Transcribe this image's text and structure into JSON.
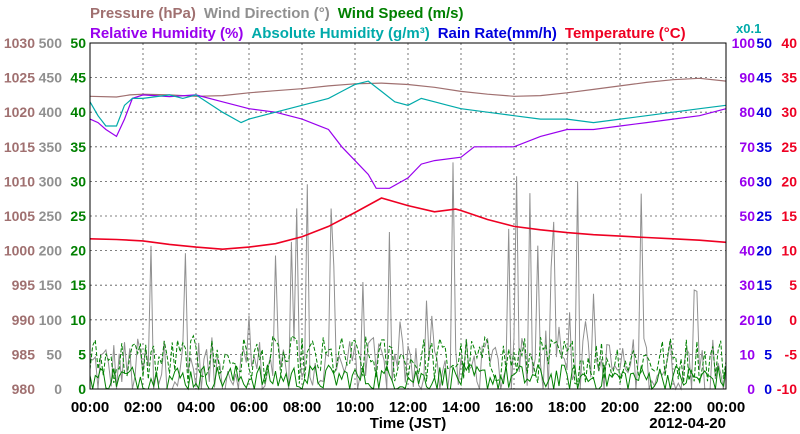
{
  "chart_data": {
    "type": "line",
    "title_row1": [
      {
        "text": "Pressure (hPa)",
        "color": "#a07070"
      },
      {
        "text": "Wind Direction (°)",
        "color": "#909090"
      },
      {
        "text": "Wind Speed (m/s)",
        "color": "#008000"
      }
    ],
    "title_row2": [
      {
        "text": "Relative Humidity (%)",
        "color": "#9900ee"
      },
      {
        "text": "Absolute Humidity (g/m³)",
        "color": "#00aaaa"
      },
      {
        "text": "Rain Rate(mm/h)",
        "color": "#0000dd"
      },
      {
        "text": "Temperature (°C)",
        "color": "#ee0022"
      }
    ],
    "rain_scale_note": "x0.1",
    "xlabel": "Time (JST)",
    "date": "2012-04-20",
    "x_ticks": [
      "00:00",
      "02:00",
      "04:00",
      "06:00",
      "08:00",
      "10:00",
      "12:00",
      "14:00",
      "16:00",
      "18:00",
      "20:00",
      "22:00",
      "00:00"
    ],
    "axes": {
      "pressure": {
        "label_color": "#a07070",
        "ticks": [
          "980",
          "985",
          "990",
          "995",
          "1000",
          "1005",
          "1010",
          "1015",
          "1020",
          "1025",
          "1030"
        ],
        "range": [
          980,
          1030
        ]
      },
      "wind_direction": {
        "label_color": "#909090",
        "ticks": [
          "0",
          "50",
          "100",
          "150",
          "200",
          "250",
          "300",
          "350",
          "400",
          "450",
          "500"
        ],
        "range": [
          0,
          500
        ]
      },
      "wind_speed": {
        "label_color": "#008000",
        "ticks": [
          "0",
          "5",
          "10",
          "15",
          "20",
          "25",
          "30",
          "35",
          "40",
          "45",
          "50"
        ],
        "range": [
          0,
          50
        ]
      },
      "humidity": {
        "label_color": "#9900ee",
        "ticks": [
          "0",
          "10",
          "20",
          "30",
          "40",
          "50",
          "60",
          "70",
          "80",
          "90",
          "100"
        ],
        "range": [
          0,
          100
        ]
      },
      "rain_rate": {
        "label_color": "#0000dd",
        "ticks": [
          "0",
          "5",
          "10",
          "15",
          "20",
          "25",
          "30",
          "35",
          "40",
          "45",
          "50"
        ],
        "range": [
          0,
          50
        ]
      },
      "temperature": {
        "label_color": "#ee0022",
        "ticks": [
          "-10",
          "-5",
          "0",
          "5",
          "10",
          "15",
          "20",
          "25",
          "30",
          "35",
          "40"
        ],
        "range": [
          -10,
          40
        ]
      }
    },
    "x_range_hours": [
      0,
      24
    ],
    "grid": true,
    "series": [
      {
        "name": "Pressure (hPa)",
        "axis": "pressure",
        "color": "#a07070",
        "points": [
          [
            0,
            1022.3
          ],
          [
            1,
            1022.2
          ],
          [
            1.5,
            1022.5
          ],
          [
            2,
            1022.6
          ],
          [
            3,
            1022.5
          ],
          [
            4,
            1022.3
          ],
          [
            5,
            1022.4
          ],
          [
            6,
            1022.8
          ],
          [
            7,
            1023.1
          ],
          [
            8,
            1023.4
          ],
          [
            9,
            1023.8
          ],
          [
            10,
            1024.1
          ],
          [
            11,
            1024.2
          ],
          [
            12,
            1024.0
          ],
          [
            13,
            1023.6
          ],
          [
            14,
            1023.0
          ],
          [
            15,
            1022.6
          ],
          [
            16,
            1022.3
          ],
          [
            17,
            1022.4
          ],
          [
            18,
            1022.8
          ],
          [
            19,
            1023.3
          ],
          [
            20,
            1023.8
          ],
          [
            21,
            1024.3
          ],
          [
            22,
            1024.7
          ],
          [
            23,
            1024.9
          ],
          [
            24,
            1024.5
          ]
        ]
      },
      {
        "name": "Relative Humidity (%)",
        "axis": "humidity",
        "color": "#9900ee",
        "points": [
          [
            0,
            78
          ],
          [
            0.3,
            77
          ],
          [
            0.6,
            75
          ],
          [
            1,
            73
          ],
          [
            1.3,
            78
          ],
          [
            1.6,
            84
          ],
          [
            2,
            85
          ],
          [
            3,
            84.5
          ],
          [
            4,
            85
          ],
          [
            5,
            83
          ],
          [
            6,
            81
          ],
          [
            7,
            80
          ],
          [
            8,
            78
          ],
          [
            9,
            75
          ],
          [
            9.5,
            70
          ],
          [
            10,
            66
          ],
          [
            10.5,
            62
          ],
          [
            10.8,
            58
          ],
          [
            11.3,
            58
          ],
          [
            12,
            61
          ],
          [
            12.5,
            65
          ],
          [
            13,
            66
          ],
          [
            14,
            67
          ],
          [
            14.5,
            70
          ],
          [
            15,
            70
          ],
          [
            16,
            70
          ],
          [
            17,
            73
          ],
          [
            18,
            75
          ],
          [
            19,
            75
          ],
          [
            20,
            76
          ],
          [
            21,
            77
          ],
          [
            22,
            78
          ],
          [
            23,
            79
          ],
          [
            24,
            81
          ]
        ]
      },
      {
        "name": "Absolute Humidity (g/m³)",
        "axis": "wind_speed",
        "color": "#00aaaa",
        "points": [
          [
            0,
            41.5
          ],
          [
            0.3,
            39.5
          ],
          [
            0.6,
            38
          ],
          [
            1,
            38
          ],
          [
            1.3,
            41
          ],
          [
            1.6,
            42
          ],
          [
            2,
            42
          ],
          [
            3,
            42.5
          ],
          [
            3.5,
            42
          ],
          [
            4,
            42.5
          ],
          [
            5,
            40
          ],
          [
            5.7,
            38.5
          ],
          [
            6,
            39
          ],
          [
            7,
            40
          ],
          [
            8,
            41
          ],
          [
            9,
            42
          ],
          [
            9.5,
            43
          ],
          [
            10,
            44
          ],
          [
            10.5,
            44.5
          ],
          [
            11,
            43
          ],
          [
            11.5,
            41.5
          ],
          [
            12,
            41
          ],
          [
            12.5,
            42
          ],
          [
            13,
            41.5
          ],
          [
            13.5,
            41
          ],
          [
            14,
            40.5
          ],
          [
            15,
            40
          ],
          [
            16,
            39.5
          ],
          [
            17,
            39
          ],
          [
            18,
            39
          ],
          [
            19,
            38.5
          ],
          [
            20,
            39
          ],
          [
            21,
            39.5
          ],
          [
            22,
            40
          ],
          [
            23,
            40.5
          ],
          [
            24,
            41
          ]
        ]
      },
      {
        "name": "Temperature (°C)",
        "axis": "temperature",
        "color": "#ee0022",
        "points": [
          [
            0,
            11.7
          ],
          [
            1,
            11.6
          ],
          [
            2,
            11.4
          ],
          [
            3,
            10.9
          ],
          [
            4,
            10.5
          ],
          [
            5,
            10.2
          ],
          [
            6,
            10.5
          ],
          [
            7,
            11.0
          ],
          [
            8,
            12.0
          ],
          [
            9,
            13.5
          ],
          [
            10,
            15.5
          ],
          [
            11,
            17.6
          ],
          [
            12,
            16.5
          ],
          [
            13,
            15.6
          ],
          [
            13.8,
            16.0
          ],
          [
            14,
            15.8
          ],
          [
            15,
            14.5
          ],
          [
            16,
            13.5
          ],
          [
            17,
            13.0
          ],
          [
            18,
            12.6
          ],
          [
            19,
            12.3
          ],
          [
            20,
            12.1
          ],
          [
            21,
            11.9
          ],
          [
            22,
            11.7
          ],
          [
            23,
            11.5
          ],
          [
            24,
            11.2
          ]
        ]
      }
    ],
    "noisy_series": [
      {
        "name": "Wind Direction (°)",
        "axis": "wind_direction",
        "color": "#909090",
        "baseline": 30,
        "spread": 45,
        "spike_max": 330,
        "spike_prob": 0.14,
        "x_range": [
          0,
          24
        ]
      },
      {
        "name": "Wind Speed max (m/s)",
        "axis": "wind_speed",
        "color": "#008000",
        "dashed": true,
        "baseline": 4.2,
        "spread": 3.5,
        "x_range": [
          0,
          24
        ]
      },
      {
        "name": "Wind Speed mean (m/s)",
        "axis": "wind_speed",
        "color": "#008000",
        "dashed": false,
        "baseline": 1.6,
        "spread": 2.0,
        "x_range": [
          0,
          24
        ]
      }
    ]
  }
}
